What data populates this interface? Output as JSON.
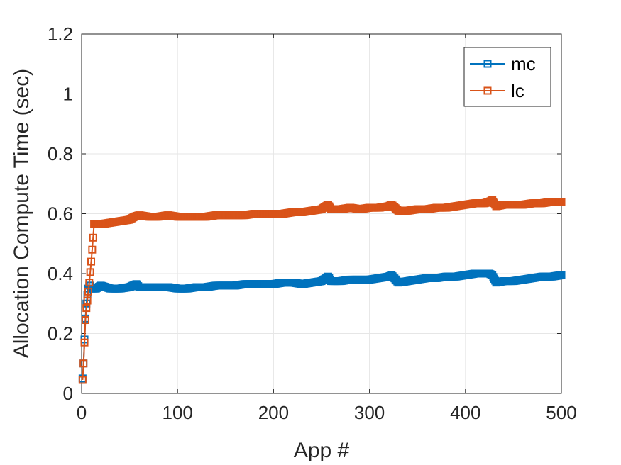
{
  "chart_data": {
    "type": "line",
    "title": "",
    "xlabel": "App #",
    "ylabel": "Allocation Compute Time (sec)",
    "xlim": [
      0,
      500
    ],
    "ylim": [
      0,
      1.2
    ],
    "xticks": [
      0,
      100,
      200,
      300,
      400,
      500
    ],
    "xtick_labels": [
      "0",
      "100",
      "200",
      "300",
      "400",
      "500"
    ],
    "yticks": [
      0,
      0.2,
      0.4,
      0.6,
      0.8,
      1.0,
      1.2
    ],
    "ytick_labels": [
      "0",
      "0.2",
      "0.4",
      "0.6",
      "0.8",
      "1",
      "1.2"
    ],
    "grid": true,
    "legend_position": "top-right",
    "marker": "square",
    "series": [
      {
        "name": "mc",
        "color": "#0072BD",
        "x": [
          1,
          2,
          3,
          4,
          5,
          6,
          7,
          8,
          9,
          10,
          12,
          15,
          20,
          30,
          40,
          50,
          57,
          60,
          70,
          80,
          90,
          100,
          110,
          120,
          130,
          140,
          150,
          160,
          170,
          180,
          190,
          200,
          210,
          220,
          230,
          240,
          250,
          257,
          260,
          270,
          280,
          290,
          300,
          310,
          320,
          323,
          330,
          340,
          350,
          360,
          370,
          380,
          390,
          400,
          410,
          420,
          425,
          428,
          432,
          440,
          450,
          460,
          470,
          480,
          490,
          500
        ],
        "y": [
          0.05,
          0.1,
          0.18,
          0.25,
          0.3,
          0.33,
          0.35,
          0.36,
          0.36,
          0.35,
          0.35,
          0.35,
          0.36,
          0.35,
          0.35,
          0.355,
          0.365,
          0.355,
          0.355,
          0.355,
          0.355,
          0.35,
          0.35,
          0.355,
          0.355,
          0.36,
          0.36,
          0.36,
          0.365,
          0.365,
          0.365,
          0.365,
          0.37,
          0.37,
          0.365,
          0.37,
          0.375,
          0.39,
          0.375,
          0.375,
          0.38,
          0.38,
          0.38,
          0.385,
          0.39,
          0.395,
          0.37,
          0.375,
          0.38,
          0.385,
          0.385,
          0.39,
          0.39,
          0.395,
          0.4,
          0.4,
          0.4,
          0.395,
          0.37,
          0.375,
          0.375,
          0.38,
          0.385,
          0.39,
          0.39,
          0.395
        ]
      },
      {
        "name": "lc",
        "color": "#D95319",
        "x": [
          1,
          2,
          3,
          4,
          5,
          6,
          7,
          8,
          9,
          10,
          11,
          12,
          13,
          15,
          20,
          30,
          40,
          50,
          55,
          60,
          70,
          80,
          90,
          100,
          110,
          120,
          130,
          140,
          150,
          160,
          170,
          180,
          190,
          200,
          210,
          220,
          230,
          240,
          250,
          257,
          260,
          270,
          280,
          290,
          300,
          310,
          320,
          323,
          330,
          340,
          350,
          360,
          370,
          380,
          390,
          400,
          410,
          420,
          425,
          428,
          432,
          440,
          450,
          460,
          470,
          480,
          490,
          500
        ],
        "y": [
          0.045,
          0.1,
          0.17,
          0.245,
          0.285,
          0.31,
          0.34,
          0.37,
          0.405,
          0.44,
          0.48,
          0.52,
          0.565,
          0.565,
          0.565,
          0.57,
          0.575,
          0.58,
          0.59,
          0.595,
          0.59,
          0.59,
          0.595,
          0.59,
          0.59,
          0.59,
          0.59,
          0.595,
          0.595,
          0.595,
          0.595,
          0.6,
          0.6,
          0.6,
          0.6,
          0.605,
          0.605,
          0.61,
          0.615,
          0.63,
          0.615,
          0.615,
          0.62,
          0.615,
          0.62,
          0.62,
          0.625,
          0.63,
          0.61,
          0.61,
          0.615,
          0.615,
          0.62,
          0.62,
          0.625,
          0.63,
          0.635,
          0.635,
          0.64,
          0.645,
          0.625,
          0.63,
          0.63,
          0.63,
          0.635,
          0.635,
          0.64,
          0.64
        ]
      }
    ]
  }
}
